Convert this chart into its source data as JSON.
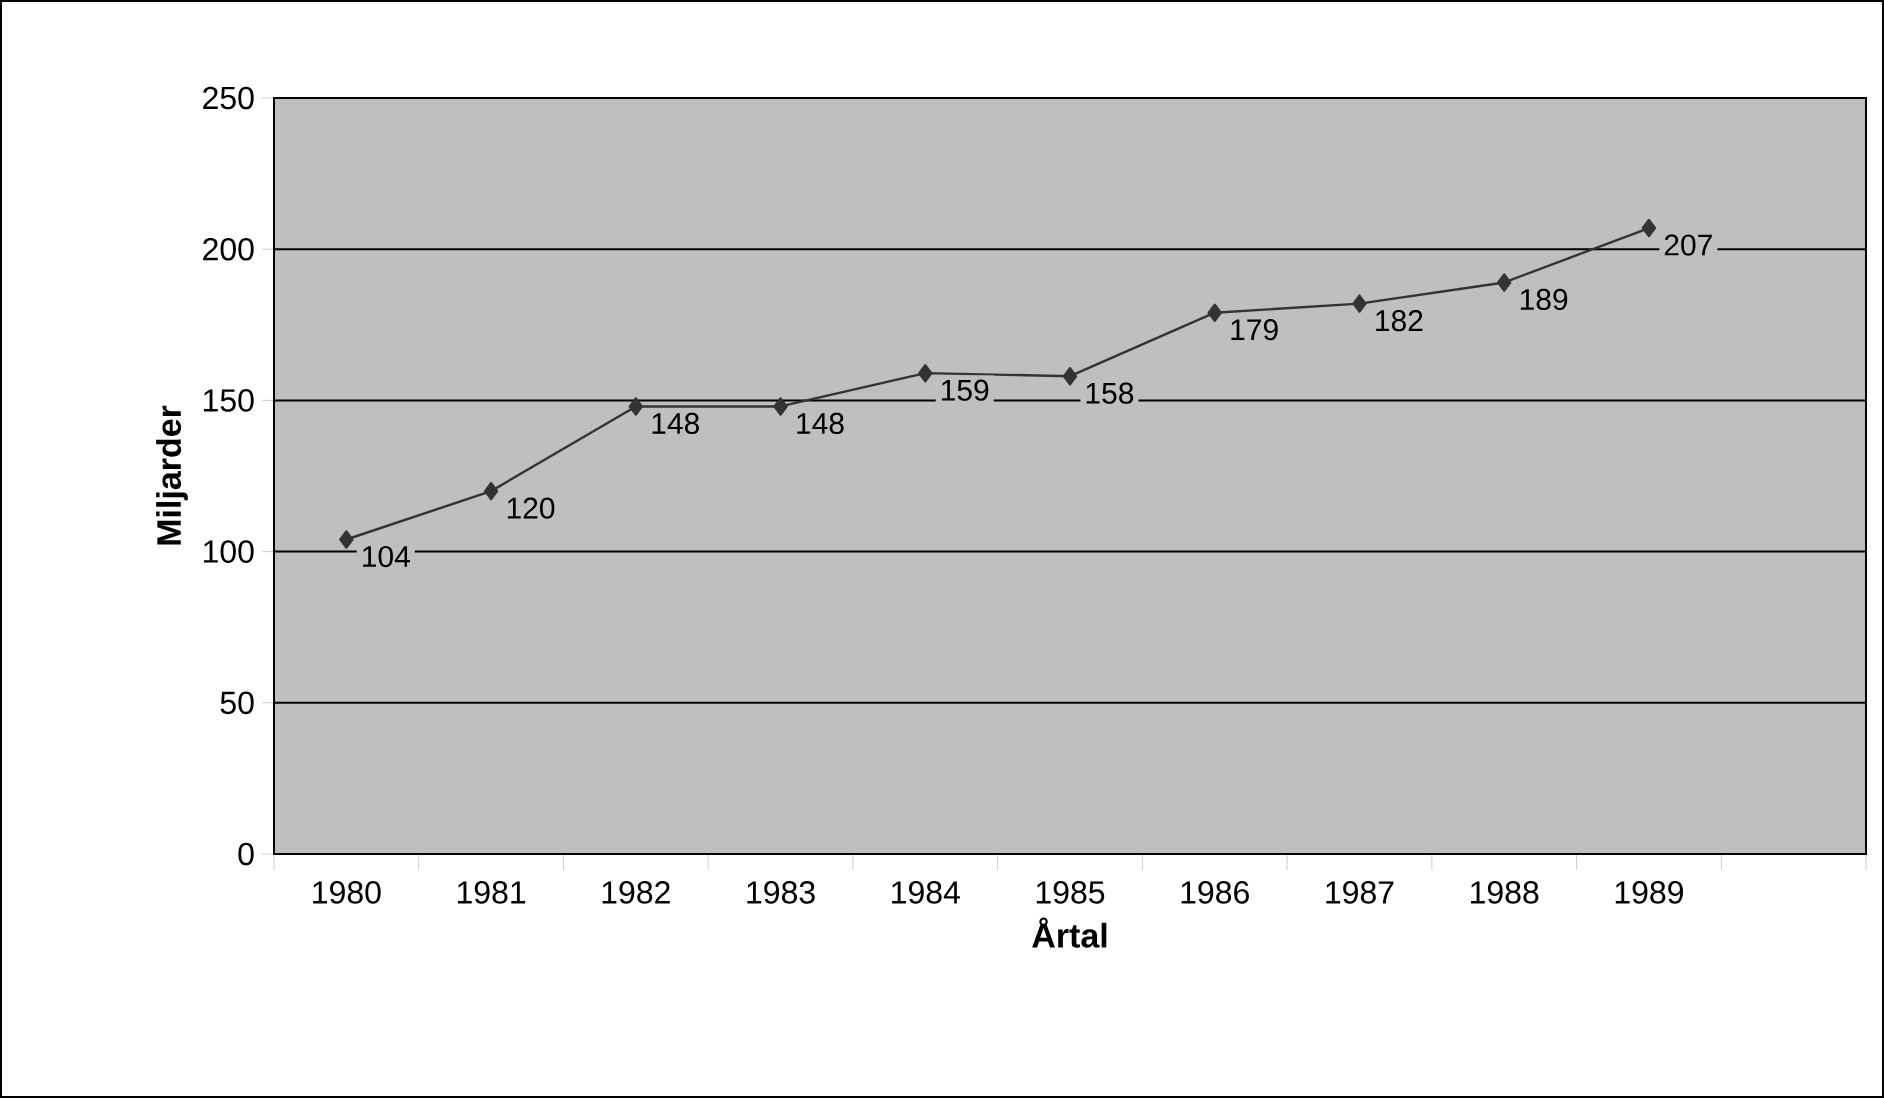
{
  "chart_data": {
    "type": "line",
    "xlabel": "Årtal",
    "ylabel": "Miljarder",
    "categories": [
      "1980",
      "1981",
      "1982",
      "1983",
      "1984",
      "1985",
      "1986",
      "1987",
      "1988",
      "1989",
      null
    ],
    "values": [
      104,
      120,
      148,
      148,
      159,
      158,
      179,
      182,
      189,
      207,
      null
    ],
    "color": "#333333",
    "marker": "diamond",
    "line_style": "solid",
    "data_labels": true,
    "ylim": [
      0,
      250
    ],
    "yticks": [
      0,
      50,
      100,
      150,
      200,
      250
    ],
    "grid": "y"
  }
}
